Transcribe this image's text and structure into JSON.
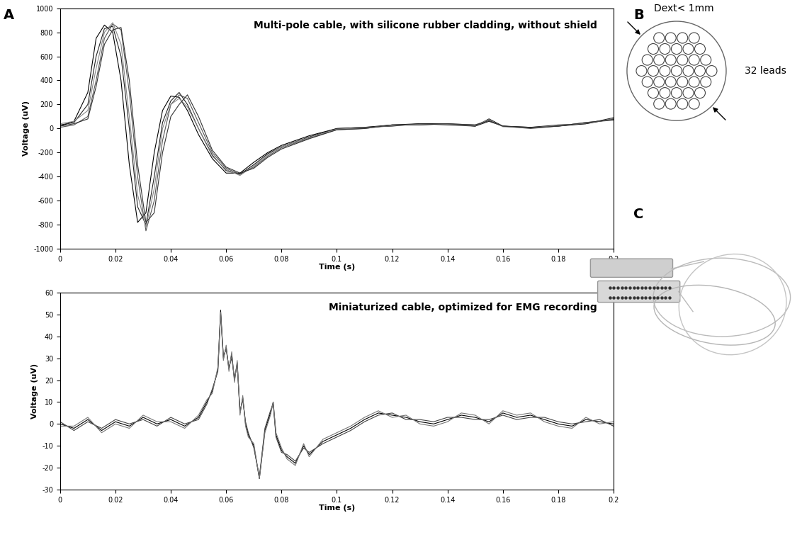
{
  "chart_data": [
    {
      "type": "line",
      "annotation": "Multi-pole cable, with silicone rubber cladding, without shield",
      "x_label": "Time (s)",
      "y_label": "Voltage (uV)",
      "xlim": [
        0,
        0.2
      ],
      "xticks": [
        0,
        0.02,
        0.04,
        0.06,
        0.08,
        0.1,
        0.12,
        0.14,
        0.16,
        0.18,
        0.2
      ],
      "ylim": [
        -1000,
        1000
      ],
      "yticks": [
        -1000,
        -800,
        -600,
        -400,
        -200,
        0,
        200,
        400,
        600,
        800,
        1000
      ],
      "x": [
        0,
        0.005,
        0.01,
        0.013,
        0.016,
        0.019,
        0.022,
        0.025,
        0.028,
        0.031,
        0.034,
        0.037,
        0.04,
        0.043,
        0.046,
        0.05,
        0.055,
        0.06,
        0.065,
        0.07,
        0.075,
        0.08,
        0.09,
        0.1,
        0.11,
        0.12,
        0.13,
        0.14,
        0.15,
        0.155,
        0.16,
        0.17,
        0.18,
        0.19,
        0.2
      ],
      "series": [
        {
          "color": "#000000",
          "values": [
            20,
            60,
            300,
            750,
            860,
            800,
            400,
            -300,
            -780,
            -700,
            -200,
            150,
            270,
            260,
            150,
            -50,
            -250,
            -370,
            -370,
            -280,
            -200,
            -140,
            -60,
            0,
            10,
            30,
            40,
            40,
            20,
            80,
            20,
            10,
            20,
            40,
            80
          ]
        },
        {
          "color": "#555555",
          "values": [
            10,
            30,
            100,
            400,
            750,
            870,
            820,
            300,
            -400,
            -850,
            -600,
            -100,
            200,
            280,
            250,
            50,
            -200,
            -330,
            -380,
            -320,
            -230,
            -160,
            -80,
            -10,
            0,
            30,
            30,
            40,
            30,
            70,
            20,
            0,
            20,
            50,
            70
          ]
        },
        {
          "color": "#222222",
          "values": [
            30,
            50,
            200,
            600,
            830,
            850,
            600,
            0,
            -650,
            -800,
            -400,
            50,
            230,
            300,
            200,
            0,
            -220,
            -350,
            -380,
            -300,
            -210,
            -150,
            -70,
            0,
            10,
            20,
            40,
            30,
            20,
            60,
            20,
            10,
            30,
            40,
            90
          ]
        },
        {
          "color": "#888888",
          "values": [
            40,
            60,
            150,
            500,
            800,
            880,
            700,
            100,
            -550,
            -820,
            -500,
            0,
            200,
            250,
            180,
            0,
            -230,
            -340,
            -390,
            -310,
            -220,
            -150,
            -75,
            -5,
            5,
            25,
            35,
            35,
            25,
            75,
            15,
            5,
            25,
            45,
            80
          ]
        },
        {
          "color": "#333333",
          "values": [
            20,
            40,
            80,
            350,
            700,
            820,
            840,
            400,
            -300,
            -780,
            -700,
            -200,
            100,
            200,
            280,
            100,
            -180,
            -320,
            -370,
            -330,
            -240,
            -170,
            -85,
            -10,
            0,
            30,
            30,
            40,
            30,
            65,
            20,
            5,
            20,
            50,
            75
          ]
        }
      ]
    },
    {
      "type": "line",
      "annotation": "Miniaturized cable, optimized for EMG recording",
      "x_label": "Time (s)",
      "y_label": "Voltage (uV)",
      "xlim": [
        0,
        0.2
      ],
      "xticks": [
        0,
        0.02,
        0.04,
        0.06,
        0.08,
        0.1,
        0.12,
        0.14,
        0.16,
        0.18,
        0.2
      ],
      "ylim": [
        -30,
        60
      ],
      "yticks": [
        -30,
        -20,
        -10,
        0,
        10,
        20,
        30,
        40,
        50,
        60
      ],
      "x": [
        0,
        0.005,
        0.01,
        0.015,
        0.02,
        0.025,
        0.03,
        0.035,
        0.04,
        0.045,
        0.05,
        0.053,
        0.055,
        0.057,
        0.058,
        0.059,
        0.06,
        0.061,
        0.062,
        0.063,
        0.064,
        0.065,
        0.066,
        0.067,
        0.068,
        0.07,
        0.072,
        0.074,
        0.076,
        0.077,
        0.078,
        0.08,
        0.082,
        0.085,
        0.088,
        0.09,
        0.095,
        0.1,
        0.105,
        0.11,
        0.115,
        0.12,
        0.125,
        0.13,
        0.135,
        0.14,
        0.145,
        0.15,
        0.155,
        0.16,
        0.165,
        0.17,
        0.175,
        0.18,
        0.185,
        0.19,
        0.195,
        0.2
      ],
      "series": [
        {
          "color": "#000000",
          "values": [
            0,
            -2,
            2,
            -3,
            1,
            -1,
            3,
            0,
            2,
            -1,
            3,
            10,
            15,
            25,
            52,
            30,
            35,
            25,
            32,
            20,
            28,
            5,
            12,
            0,
            -5,
            -10,
            -25,
            -3,
            5,
            10,
            -5,
            -12,
            -15,
            -18,
            -10,
            -14,
            -8,
            -5,
            -2,
            2,
            5,
            4,
            3,
            1,
            0,
            2,
            4,
            3,
            1,
            5,
            3,
            4,
            2,
            0,
            -1,
            2,
            1,
            0
          ]
        },
        {
          "color": "#444444",
          "values": [
            1,
            -3,
            1,
            -2,
            2,
            0,
            2,
            -1,
            3,
            0,
            2,
            9,
            16,
            24,
            50,
            31,
            34,
            26,
            30,
            21,
            27,
            6,
            11,
            1,
            -4,
            -11,
            -24,
            -2,
            6,
            9,
            -6,
            -13,
            -14,
            -17,
            -11,
            -13,
            -9,
            -6,
            -3,
            1,
            4,
            5,
            2,
            2,
            1,
            3,
            3,
            2,
            2,
            4,
            2,
            3,
            3,
            1,
            0,
            1,
            2,
            -1
          ]
        },
        {
          "color": "#777777",
          "values": [
            -1,
            -1,
            3,
            -4,
            0,
            -2,
            4,
            1,
            1,
            -2,
            4,
            11,
            14,
            26,
            51,
            29,
            36,
            24,
            33,
            19,
            29,
            4,
            13,
            -1,
            -6,
            -9,
            -25,
            -4,
            4,
            10,
            -4,
            -11,
            -16,
            -19,
            -9,
            -15,
            -7,
            -4,
            -1,
            3,
            6,
            3,
            4,
            0,
            -1,
            1,
            5,
            4,
            0,
            6,
            4,
            5,
            1,
            -1,
            -2,
            3,
            0,
            1
          ]
        }
      ]
    }
  ],
  "panels": [
    "A",
    "B",
    "C"
  ],
  "diagram": {
    "diameter_label": "Dext< 1mm",
    "leads_label": "32 leads"
  }
}
